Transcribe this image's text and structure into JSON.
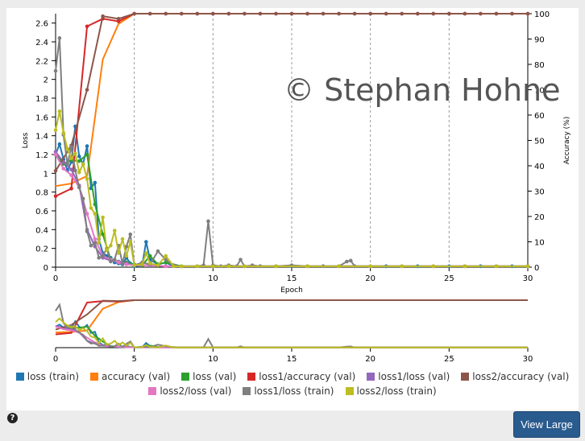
{
  "watermark": "© Stephan Hohne",
  "view_large_label": "View Large",
  "help_icon": "question-circle-icon",
  "chart_data": {
    "type": "line",
    "xlabel": "Epoch",
    "ylabel_left": "Loss",
    "ylabel_right": "Accuracy (%)",
    "xlim": [
      0,
      30
    ],
    "ylim_left": [
      0,
      2.7
    ],
    "ylim_right": [
      0,
      100
    ],
    "x_ticks": [
      0,
      5,
      10,
      15,
      20,
      25,
      30
    ],
    "y_ticks_left": [
      0,
      0.2,
      0.4,
      0.6,
      0.8,
      1,
      1.2,
      1.4,
      1.6,
      1.8,
      2,
      2.2,
      2.4,
      2.6
    ],
    "y_ticks_right": [
      0,
      10,
      20,
      30,
      40,
      50,
      60,
      70,
      80,
      90,
      100
    ],
    "vertical_grid_at": [
      5,
      10,
      15,
      20,
      25,
      30
    ],
    "series": [
      {
        "name": "loss (train)",
        "color": "#1f77b4",
        "axis": "left",
        "markers": true,
        "points": [
          [
            0,
            1.2
          ],
          [
            0.25,
            1.31
          ],
          [
            0.5,
            1.15
          ],
          [
            0.75,
            1.03
          ],
          [
            1,
            1.12
          ],
          [
            1.25,
            1.5
          ],
          [
            1.5,
            1.18
          ],
          [
            1.75,
            1.1
          ],
          [
            2,
            1.29
          ],
          [
            2.25,
            0.84
          ],
          [
            2.5,
            0.9
          ],
          [
            2.75,
            0.3
          ],
          [
            3,
            0.15
          ],
          [
            3.25,
            0.12
          ],
          [
            3.5,
            0.1
          ],
          [
            3.75,
            0.05
          ],
          [
            4,
            0.04
          ],
          [
            4.25,
            0.03
          ],
          [
            4.5,
            0.1
          ],
          [
            4.75,
            0.04
          ],
          [
            5,
            0.01
          ],
          [
            5.5,
            0.02
          ],
          [
            5.75,
            0.27
          ],
          [
            6,
            0.08
          ],
          [
            6.5,
            0.03
          ],
          [
            7,
            0.05
          ],
          [
            7.5,
            0.01
          ],
          [
            8,
            0.01
          ],
          [
            9,
            0.01
          ],
          [
            10,
            0.01
          ],
          [
            11,
            0.01
          ],
          [
            12,
            0.01
          ],
          [
            13,
            0.01
          ],
          [
            15,
            0.01
          ],
          [
            17,
            0.01
          ],
          [
            19,
            0.01
          ],
          [
            21,
            0.01
          ],
          [
            23,
            0.01
          ],
          [
            25,
            0.01
          ],
          [
            27,
            0.01
          ],
          [
            29,
            0.01
          ],
          [
            30,
            0.01
          ]
        ]
      },
      {
        "name": "accuracy (val)",
        "color": "#ff7f0e",
        "axis": "right",
        "markers": false,
        "points": [
          [
            0,
            32
          ],
          [
            1,
            33
          ],
          [
            2,
            36
          ],
          [
            3,
            82
          ],
          [
            4,
            96
          ],
          [
            5,
            100
          ],
          [
            6,
            100
          ],
          [
            7,
            100
          ],
          [
            8,
            100
          ],
          [
            9,
            100
          ],
          [
            10,
            100
          ],
          [
            12,
            100
          ],
          [
            14,
            100
          ],
          [
            16,
            100
          ],
          [
            18,
            100
          ],
          [
            20,
            100
          ],
          [
            22,
            100
          ],
          [
            24,
            100
          ],
          [
            26,
            100
          ],
          [
            28,
            100
          ],
          [
            30,
            100
          ]
        ]
      },
      {
        "name": "loss (val)",
        "color": "#2ca02c",
        "axis": "left",
        "markers": true,
        "points": [
          [
            0,
            1.2
          ],
          [
            0.5,
            1.1
          ],
          [
            1,
            1.14
          ],
          [
            1.5,
            1.13
          ],
          [
            2,
            1.2
          ],
          [
            2.5,
            0.67
          ],
          [
            3,
            0.35
          ],
          [
            3.5,
            0.08
          ],
          [
            4,
            0.06
          ],
          [
            4.5,
            0.05
          ],
          [
            5,
            0.03
          ],
          [
            5.5,
            0.02
          ],
          [
            6,
            0.12
          ],
          [
            6.5,
            0.03
          ],
          [
            7,
            0.05
          ],
          [
            8,
            0.01
          ],
          [
            10,
            0.01
          ],
          [
            12,
            0.01
          ],
          [
            14,
            0.01
          ],
          [
            16,
            0.01
          ],
          [
            18,
            0.01
          ],
          [
            20,
            0.01
          ],
          [
            22,
            0.01
          ],
          [
            24,
            0.01
          ],
          [
            26,
            0.01
          ],
          [
            28,
            0.01
          ],
          [
            30,
            0.01
          ]
        ]
      },
      {
        "name": "loss1/accuracy (val)",
        "color": "#d62728",
        "axis": "right",
        "markers": true,
        "points": [
          [
            0,
            28
          ],
          [
            1,
            31
          ],
          [
            2,
            95
          ],
          [
            3,
            98
          ],
          [
            4,
            97
          ],
          [
            5,
            100
          ],
          [
            6,
            100
          ],
          [
            7,
            100
          ],
          [
            8,
            100
          ],
          [
            9,
            100
          ],
          [
            10,
            100
          ],
          [
            11,
            100
          ],
          [
            12,
            100
          ],
          [
            13,
            100
          ],
          [
            14,
            100
          ],
          [
            15,
            100
          ],
          [
            16,
            100
          ],
          [
            17,
            100
          ],
          [
            18,
            100
          ],
          [
            19,
            100
          ],
          [
            20,
            100
          ],
          [
            21,
            100
          ],
          [
            22,
            100
          ],
          [
            23,
            100
          ],
          [
            24,
            100
          ],
          [
            25,
            100
          ],
          [
            26,
            100
          ],
          [
            27,
            100
          ],
          [
            28,
            100
          ],
          [
            29,
            100
          ],
          [
            30,
            100
          ]
        ]
      },
      {
        "name": "loss1/loss (val)",
        "color": "#9467bd",
        "axis": "left",
        "markers": true,
        "points": [
          [
            0,
            1.23
          ],
          [
            0.5,
            1.12
          ],
          [
            1,
            1.04
          ],
          [
            1.5,
            0.87
          ],
          [
            2,
            0.4
          ],
          [
            2.5,
            0.22
          ],
          [
            3,
            0.1
          ],
          [
            3.5,
            0.07
          ],
          [
            4,
            0.06
          ],
          [
            4.5,
            0.04
          ],
          [
            5,
            0.02
          ],
          [
            6,
            0.02
          ],
          [
            7,
            0.01
          ],
          [
            8,
            0.01
          ],
          [
            10,
            0.01
          ],
          [
            12,
            0.01
          ],
          [
            14,
            0.01
          ],
          [
            16,
            0.01
          ],
          [
            18,
            0.01
          ],
          [
            20,
            0.01
          ],
          [
            22,
            0.01
          ],
          [
            24,
            0.01
          ],
          [
            26,
            0.01
          ],
          [
            28,
            0.01
          ],
          [
            30,
            0.01
          ]
        ]
      },
      {
        "name": "loss2/accuracy (val)",
        "color": "#8c564b",
        "axis": "right",
        "markers": true,
        "points": [
          [
            0,
            38
          ],
          [
            1,
            48
          ],
          [
            2,
            70
          ],
          [
            3,
            99
          ],
          [
            4,
            98
          ],
          [
            5,
            100
          ],
          [
            6,
            100
          ],
          [
            7,
            100
          ],
          [
            8,
            100
          ],
          [
            9,
            100
          ],
          [
            10,
            100
          ],
          [
            11,
            100
          ],
          [
            12,
            100
          ],
          [
            13,
            100
          ],
          [
            14,
            100
          ],
          [
            15,
            100
          ],
          [
            16,
            100
          ],
          [
            17,
            100
          ],
          [
            18,
            100
          ],
          [
            19,
            100
          ],
          [
            20,
            100
          ],
          [
            21,
            100
          ],
          [
            22,
            100
          ],
          [
            23,
            100
          ],
          [
            24,
            100
          ],
          [
            25,
            100
          ],
          [
            26,
            100
          ],
          [
            27,
            100
          ],
          [
            28,
            100
          ],
          [
            29,
            100
          ],
          [
            30,
            100
          ]
        ]
      },
      {
        "name": "loss2/loss (val)",
        "color": "#e377c2",
        "axis": "left",
        "markers": true,
        "points": [
          [
            0,
            1.2
          ],
          [
            0.5,
            1.05
          ],
          [
            1,
            0.98
          ],
          [
            1.5,
            0.85
          ],
          [
            2,
            0.57
          ],
          [
            2.5,
            0.3
          ],
          [
            3,
            0.12
          ],
          [
            3.5,
            0.08
          ],
          [
            4,
            0.05
          ],
          [
            4.5,
            0.03
          ],
          [
            5,
            0.02
          ],
          [
            6,
            0.02
          ],
          [
            7,
            0.01
          ],
          [
            8,
            0.01
          ],
          [
            10,
            0.01
          ],
          [
            12,
            0.01
          ],
          [
            14,
            0.01
          ],
          [
            16,
            0.01
          ],
          [
            18,
            0.01
          ],
          [
            20,
            0.01
          ],
          [
            22,
            0.01
          ],
          [
            24,
            0.01
          ],
          [
            26,
            0.01
          ],
          [
            28,
            0.01
          ],
          [
            30,
            0.01
          ]
        ]
      },
      {
        "name": "loss1/loss (train)",
        "color": "#7f7f7f",
        "axis": "left",
        "markers": true,
        "points": [
          [
            0,
            2.09
          ],
          [
            0.25,
            2.44
          ],
          [
            0.5,
            1.41
          ],
          [
            0.75,
            1.1
          ],
          [
            1,
            1.28
          ],
          [
            1.25,
            1.03
          ],
          [
            1.5,
            0.85
          ],
          [
            1.75,
            0.73
          ],
          [
            2,
            0.38
          ],
          [
            2.25,
            0.23
          ],
          [
            2.5,
            0.26
          ],
          [
            2.75,
            0.1
          ],
          [
            3,
            0.12
          ],
          [
            3.25,
            0.2
          ],
          [
            3.5,
            0.06
          ],
          [
            3.75,
            0.08
          ],
          [
            4,
            0.23
          ],
          [
            4.25,
            0.04
          ],
          [
            4.5,
            0.22
          ],
          [
            4.75,
            0.35
          ],
          [
            5,
            0.02
          ],
          [
            5.5,
            0.05
          ],
          [
            6,
            0.03
          ],
          [
            6.5,
            0.17
          ],
          [
            7,
            0.08
          ],
          [
            7.5,
            0.02
          ],
          [
            8,
            0.01
          ],
          [
            9,
            0.01
          ],
          [
            9.4,
            0.02
          ],
          [
            9.7,
            0.49
          ],
          [
            10,
            0.02
          ],
          [
            10.5,
            0.01
          ],
          [
            11,
            0.02
          ],
          [
            11.5,
            0.01
          ],
          [
            11.75,
            0.08
          ],
          [
            12,
            0.01
          ],
          [
            12.5,
            0.02
          ],
          [
            13,
            0.01
          ],
          [
            14,
            0.01
          ],
          [
            15,
            0.02
          ],
          [
            16,
            0.01
          ],
          [
            17,
            0.01
          ],
          [
            18,
            0.01
          ],
          [
            18.5,
            0.06
          ],
          [
            18.75,
            0.07
          ],
          [
            19,
            0.01
          ],
          [
            20,
            0.01
          ],
          [
            22,
            0.01
          ],
          [
            24,
            0.01
          ],
          [
            26,
            0.01
          ],
          [
            28,
            0.01
          ],
          [
            30,
            0.01
          ]
        ]
      },
      {
        "name": "loss2/loss (train)",
        "color": "#bcbd22",
        "axis": "left",
        "markers": true,
        "points": [
          [
            0,
            1.46
          ],
          [
            0.25,
            1.66
          ],
          [
            0.5,
            1.43
          ],
          [
            0.75,
            1.26
          ],
          [
            1,
            1.16
          ],
          [
            1.25,
            1.21
          ],
          [
            1.5,
            1.01
          ],
          [
            1.75,
            1.1
          ],
          [
            2,
            0.94
          ],
          [
            2.25,
            0.63
          ],
          [
            2.5,
            0.57
          ],
          [
            2.75,
            0.26
          ],
          [
            3,
            0.53
          ],
          [
            3.25,
            0.18
          ],
          [
            3.5,
            0.23
          ],
          [
            3.75,
            0.39
          ],
          [
            4,
            0.15
          ],
          [
            4.25,
            0.3
          ],
          [
            4.5,
            0.12
          ],
          [
            4.75,
            0.27
          ],
          [
            5,
            0.02
          ],
          [
            5.5,
            0.03
          ],
          [
            5.75,
            0.15
          ],
          [
            6,
            0.04
          ],
          [
            6.5,
            0.02
          ],
          [
            7,
            0.12
          ],
          [
            7.5,
            0.01
          ],
          [
            8,
            0.01
          ],
          [
            9,
            0.01
          ],
          [
            10,
            0.01
          ],
          [
            11,
            0.01
          ],
          [
            12,
            0.01
          ],
          [
            14,
            0.01
          ],
          [
            16,
            0.01
          ],
          [
            18,
            0.01
          ],
          [
            20,
            0.01
          ],
          [
            22,
            0.01
          ],
          [
            24,
            0.01
          ],
          [
            26,
            0.01
          ],
          [
            28,
            0.01
          ],
          [
            30,
            0.01
          ]
        ]
      }
    ],
    "overview": {
      "xlim": [
        0,
        30
      ],
      "x_ticks": [
        0,
        5,
        10,
        15,
        20,
        25,
        30
      ]
    },
    "legend_placement": "bottom"
  }
}
